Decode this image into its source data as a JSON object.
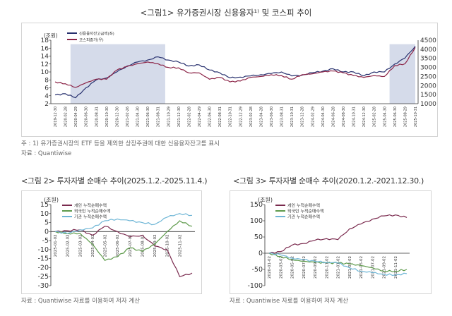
{
  "fig1": {
    "title": "<그림1> 유가증권시장 신용융자¹⁾ 및 코스피 추이",
    "note": "주 : 1) 유가증권시장의 ETF 등을 제외한 상장주권에 대한 신용융자잔고를 표시",
    "source": "자료 : Quantiwise"
  },
  "fig2": {
    "title": "<그림 2> 투자자별 순매수 추이(2025.1.2.-2025.11.4.)",
    "source": "자료 : Quantiwise 자료를 이용하여 저자 계산"
  },
  "fig3": {
    "title": "<그림 3> 투자자별 순매수 추이(2020.1.2.-2021.12.30.)",
    "source": "자료 : Quantiwise 자료를 이용하여 저자 계산"
  },
  "chart_data": [
    {
      "type": "line",
      "unit_label": "(조원)",
      "ylim": [
        2,
        18
      ],
      "yticks": [
        2,
        4,
        6,
        8,
        10,
        12,
        14,
        16,
        18
      ],
      "y2lim": [
        1000,
        4500
      ],
      "y2ticks": [
        1000,
        1500,
        2000,
        2500,
        3000,
        3500,
        4000,
        4500
      ],
      "categories": [
        "2019-12-30",
        "2020-02-28",
        "2020-04-29",
        "2020-06-30",
        "2020-08-31",
        "2020-10-30",
        "2020-12-30",
        "2021-02-26",
        "2021-04-30",
        "2021-06-30",
        "2021-08-31",
        "2021-10-29",
        "2021-12-30",
        "2022-02-28",
        "2022-04-29",
        "2022-06-30",
        "2022-08-31",
        "2022-10-31",
        "2022-12-29",
        "2023-02-28",
        "2023-04-28",
        "2023-06-30",
        "2023-08-31",
        "2023-10-31",
        "2023-12-28",
        "2024-02-29",
        "2024-04-30",
        "2024-06-28",
        "2024-08-30",
        "2024-10-31",
        "2024-12-30",
        "2025-02-28",
        "2025-04-30",
        "2025-06-30",
        "2025-08-29",
        "2025-10-31"
      ],
      "shaded_ranges": [
        [
          "2020-03",
          "2021-09"
        ],
        [
          "2025-04",
          "2025-10"
        ]
      ],
      "shade_color": "#d5dbea",
      "series": [
        {
          "name": "신용융자잔고금액(좌)",
          "axis": "left",
          "color": "#27306e",
          "values": [
            4.2,
            4.5,
            3.5,
            6,
            8,
            8.5,
            10,
            11.5,
            12.5,
            13,
            13.8,
            13,
            12.5,
            11.5,
            11.8,
            10.5,
            9.8,
            8.5,
            8.7,
            9,
            9.3,
            9.6,
            10,
            9,
            9.2,
            9.8,
            10.2,
            10.8,
            10,
            10,
            9,
            10,
            10,
            12,
            13.5,
            16.5
          ]
        },
        {
          "name": "코스피종가(우)",
          "axis": "right",
          "color": "#8b2346",
          "values": [
            2200,
            2100,
            1900,
            2150,
            2350,
            2350,
            2850,
            3050,
            3200,
            3300,
            3200,
            3000,
            2980,
            2700,
            2700,
            2350,
            2450,
            2200,
            2250,
            2450,
            2500,
            2600,
            2550,
            2350,
            2600,
            2650,
            2750,
            2800,
            2700,
            2550,
            2450,
            2550,
            2500,
            3100,
            3200,
            4100
          ]
        }
      ]
    },
    {
      "type": "line",
      "unit_label": "(조원)",
      "ylim": [
        -30,
        15
      ],
      "yticks": [
        -30,
        -25,
        -20,
        -15,
        -10,
        -5,
        0,
        5,
        10,
        15
      ],
      "categories": [
        "2025-01-02",
        "2025-02-02",
        "2025-03-02",
        "2025-04-02",
        "2025-05-02",
        "2025-06-02",
        "2025-07-02",
        "2025-08-02",
        "2025-09-02",
        "2025-10-02",
        "2025-11-02",
        "2025-11-04"
      ],
      "series": [
        {
          "name": "개인 누적순매수액",
          "color": "#7a2a4e",
          "values": [
            0,
            0.5,
            1,
            -2,
            3,
            0,
            -3,
            -2,
            -8,
            -10,
            -25,
            -23
          ]
        },
        {
          "name": "외국인 누적순매수액",
          "color": "#5d9a4a",
          "values": [
            0,
            -1,
            -1,
            -7,
            -16,
            -14,
            -9,
            -11,
            -7,
            0,
            6,
            3
          ]
        },
        {
          "name": "기관 누적순매수액",
          "color": "#6fb6d6",
          "values": [
            0,
            -1,
            1,
            2,
            6,
            7,
            6,
            5,
            4,
            8,
            10,
            9
          ]
        }
      ]
    },
    {
      "type": "line",
      "unit_label": "(조원)",
      "ylim": [
        -100,
        150
      ],
      "yticks": [
        -100,
        -50,
        0,
        50,
        100,
        150
      ],
      "categories": [
        "2020-01-02",
        "2020-03-02",
        "2020-05-02",
        "2020-07-02",
        "2020-09-02",
        "2020-11-02",
        "2021-01-02",
        "2021-03-02",
        "2021-05-02",
        "2021-07-02",
        "2021-09-02",
        "2021-11-02",
        "2021-12-30"
      ],
      "series": [
        {
          "name": "개인 누적순매수액",
          "color": "#7a2a4e",
          "values": [
            0,
            5,
            25,
            30,
            40,
            45,
            42,
            75,
            90,
            105,
            115,
            118,
            110
          ]
        },
        {
          "name": "외국인 누적순매수액",
          "color": "#5d9a4a",
          "values": [
            0,
            -10,
            -20,
            -25,
            -28,
            -30,
            -30,
            -33,
            -38,
            -45,
            -55,
            -55,
            -50
          ]
        },
        {
          "name": "기관 누적순매수액",
          "color": "#6fb6d6",
          "values": [
            0,
            -5,
            -15,
            -20,
            -25,
            -28,
            -30,
            -45,
            -55,
            -60,
            -65,
            -67,
            -63
          ]
        }
      ]
    }
  ]
}
